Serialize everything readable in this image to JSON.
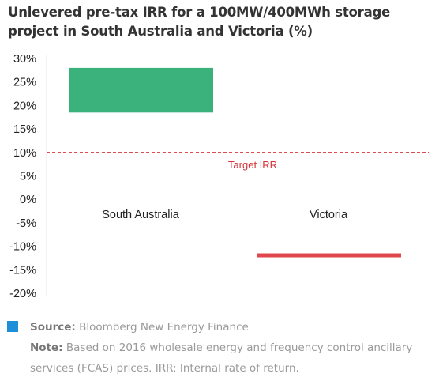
{
  "title": "Unlevered pre-tax IRR for a 100MW/400MWh storage project in South Australia and Victoria (%)",
  "chart_data": {
    "type": "bar",
    "subtype": "floating-range",
    "categories": [
      "South Australia",
      "Victoria"
    ],
    "ranges": [
      {
        "category": "South Australia",
        "low": 18.5,
        "high": 28
      },
      {
        "category": "Victoria",
        "low": -12,
        "high": -11.5
      }
    ],
    "bar_colors": [
      "#3bb27b",
      "#e0474c"
    ],
    "yticks": [
      "30%",
      "25%",
      "20%",
      "15%",
      "10%",
      "5%",
      "0%",
      "-5%",
      "-10%",
      "-15%",
      "-20%"
    ],
    "ylim": [
      -20,
      30
    ],
    "reference_line": {
      "value": 10,
      "label": "Target IRR",
      "color": "#d6333a",
      "style": "dashed"
    },
    "grid": false
  },
  "legend_color": "#1f8ed8",
  "source_label": "Source:",
  "source_text": "Bloomberg New Energy Finance",
  "note_label": "Note:",
  "note_line1": "Based on 2016 wholesale energy and frequency control ancillary",
  "note_line2": "services (FCAS) prices. IRR: Internal rate of return."
}
